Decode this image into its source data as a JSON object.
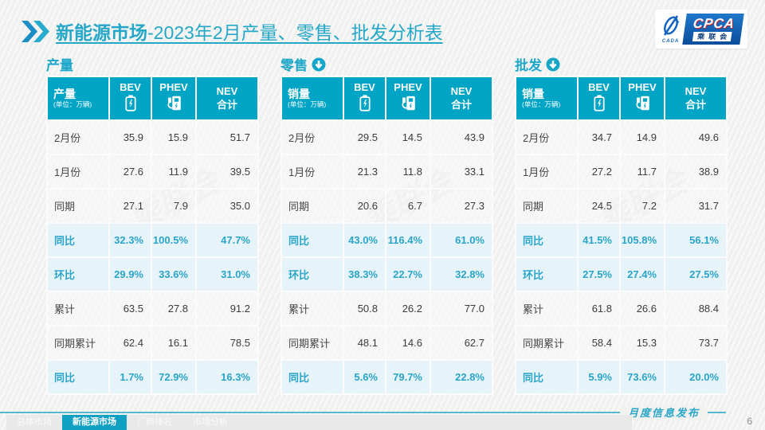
{
  "header": {
    "title_bold": "新能源市场",
    "title_rest": "-2023年2月产量、零售、批发分析表",
    "logo": {
      "cpca": "CPCA",
      "cada": "CADA",
      "sub": "乘联会"
    }
  },
  "colors": {
    "teal": "#00a4c5",
    "title_teal": "#25a7c8",
    "highlight_bg": "#e5f4fa",
    "highlight_text": "#2aa4c9"
  },
  "watermark": {
    "text": "CPCA 乘联会"
  },
  "tables": [
    {
      "section_title": "产量",
      "has_arrow": false,
      "corner_label": "产量",
      "corner_unit": "(单位：万辆)",
      "columns": [
        {
          "label": "BEV",
          "icon": "battery-icon"
        },
        {
          "label": "PHEV",
          "icon": "charger-icon"
        },
        {
          "label": "NEV",
          "label2": "合计"
        }
      ],
      "rows": [
        {
          "label": "2月份",
          "values": [
            "35.9",
            "15.9",
            "51.7"
          ],
          "highlight": false
        },
        {
          "label": "1月份",
          "values": [
            "27.6",
            "11.9",
            "39.5"
          ],
          "highlight": false
        },
        {
          "label": "同期",
          "values": [
            "27.1",
            "7.9",
            "35.0"
          ],
          "highlight": false
        },
        {
          "label": "同比",
          "values": [
            "32.3%",
            "100.5%",
            "47.7%"
          ],
          "highlight": true
        },
        {
          "label": "环比",
          "values": [
            "29.9%",
            "33.6%",
            "31.0%"
          ],
          "highlight": true
        },
        {
          "label": "累计",
          "values": [
            "63.5",
            "27.8",
            "91.2"
          ],
          "highlight": false
        },
        {
          "label": "同期累计",
          "values": [
            "62.4",
            "16.1",
            "78.5"
          ],
          "highlight": false
        },
        {
          "label": "同比",
          "values": [
            "1.7%",
            "72.9%",
            "16.3%"
          ],
          "highlight": true
        }
      ]
    },
    {
      "section_title": "零售",
      "has_arrow": true,
      "corner_label": "销量",
      "corner_unit": "(单位：万辆)",
      "columns": [
        {
          "label": "BEV",
          "icon": "battery-icon"
        },
        {
          "label": "PHEV",
          "icon": "charger-icon"
        },
        {
          "label": "NEV",
          "label2": "合计"
        }
      ],
      "rows": [
        {
          "label": "2月份",
          "values": [
            "29.5",
            "14.5",
            "43.9"
          ],
          "highlight": false
        },
        {
          "label": "1月份",
          "values": [
            "21.3",
            "11.8",
            "33.1"
          ],
          "highlight": false
        },
        {
          "label": "同期",
          "values": [
            "20.6",
            "6.7",
            "27.3"
          ],
          "highlight": false
        },
        {
          "label": "同比",
          "values": [
            "43.0%",
            "116.4%",
            "61.0%"
          ],
          "highlight": true
        },
        {
          "label": "环比",
          "values": [
            "38.3%",
            "22.7%",
            "32.8%"
          ],
          "highlight": true
        },
        {
          "label": "累计",
          "values": [
            "50.8",
            "26.2",
            "77.0"
          ],
          "highlight": false
        },
        {
          "label": "同期累计",
          "values": [
            "48.1",
            "14.6",
            "62.7"
          ],
          "highlight": false
        },
        {
          "label": "同比",
          "values": [
            "5.6%",
            "79.7%",
            "22.8%"
          ],
          "highlight": true
        }
      ]
    },
    {
      "section_title": "批发",
      "has_arrow": true,
      "corner_label": "销量",
      "corner_unit": "(单位：万辆)",
      "columns": [
        {
          "label": "BEV",
          "icon": "battery-icon"
        },
        {
          "label": "PHEV",
          "icon": "charger-icon"
        },
        {
          "label": "NEV",
          "label2": "合计"
        }
      ],
      "rows": [
        {
          "label": "2月份",
          "values": [
            "34.7",
            "14.9",
            "49.6"
          ],
          "highlight": false
        },
        {
          "label": "1月份",
          "values": [
            "27.2",
            "11.7",
            "38.9"
          ],
          "highlight": false
        },
        {
          "label": "同期",
          "values": [
            "24.5",
            "7.2",
            "31.7"
          ],
          "highlight": false
        },
        {
          "label": "同比",
          "values": [
            "41.5%",
            "105.8%",
            "56.1%"
          ],
          "highlight": true
        },
        {
          "label": "环比",
          "values": [
            "27.5%",
            "27.4%",
            "27.5%"
          ],
          "highlight": true
        },
        {
          "label": "累计",
          "values": [
            "61.8",
            "26.6",
            "88.4"
          ],
          "highlight": false
        },
        {
          "label": "同期累计",
          "values": [
            "58.4",
            "15.3",
            "73.7"
          ],
          "highlight": false
        },
        {
          "label": "同比",
          "values": [
            "5.9%",
            "73.6%",
            "20.0%"
          ],
          "highlight": true
        }
      ]
    }
  ],
  "footer": {
    "tabs": [
      {
        "label": "总体市场",
        "active": false
      },
      {
        "label": "新能源市场",
        "active": true
      },
      {
        "label": "厂商排名",
        "active": false
      },
      {
        "label": "市场分析",
        "active": false
      }
    ],
    "release_label": "月度信息发布",
    "page_number": "6"
  }
}
